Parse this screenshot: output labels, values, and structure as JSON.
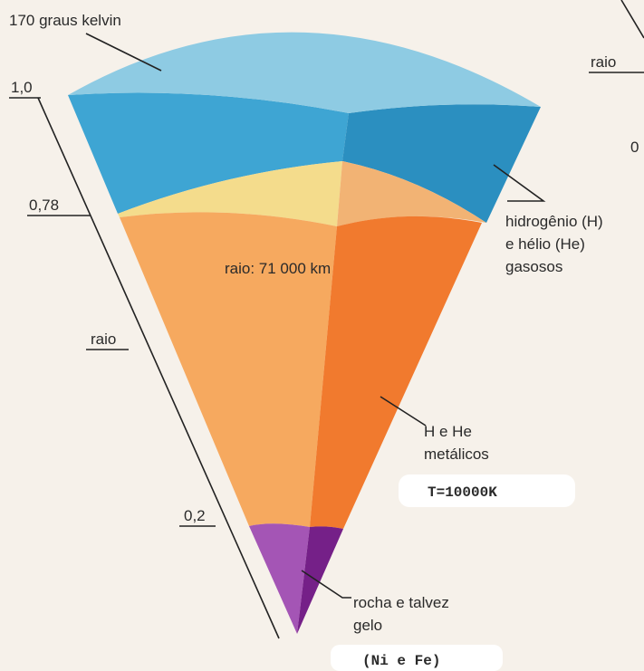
{
  "title": "170 graus kelvin",
  "scale": {
    "top": "1,0",
    "inner": "0,78",
    "axis_label": "raio",
    "core": "0,2"
  },
  "radius_label": "raio: 71 000 km",
  "layers": {
    "outer": [
      "hidrogênio (H)",
      "e hélio (He)",
      "gasosos"
    ],
    "metallic": [
      "H e He",
      "metálicos"
    ],
    "temperature": "T=10000K",
    "core": [
      "rocha e talvez",
      "gelo"
    ],
    "core_note": "(Ni e Fe)"
  },
  "next_panel": {
    "axis_label": "raio",
    "scale_fragment": "0"
  }
}
